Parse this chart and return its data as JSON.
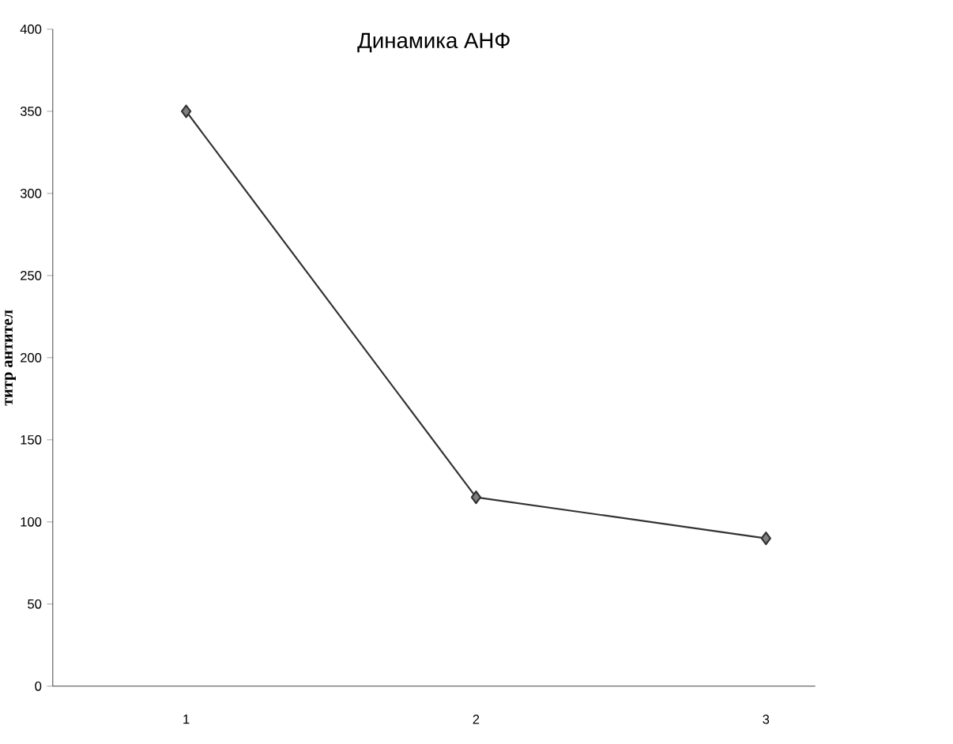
{
  "chart_data": {
    "type": "line",
    "title": "Динамика АНФ",
    "ylabel": "титр антител",
    "categories": [
      "1",
      "2",
      "3"
    ],
    "series": [
      {
        "color": "#333333",
        "values": [
          350,
          115,
          90
        ]
      }
    ],
    "ylim": [
      0,
      400
    ],
    "yticks": [
      0,
      50,
      100,
      150,
      200,
      250,
      300,
      350,
      400
    ],
    "marker": "diamond",
    "line_style": "solid"
  }
}
